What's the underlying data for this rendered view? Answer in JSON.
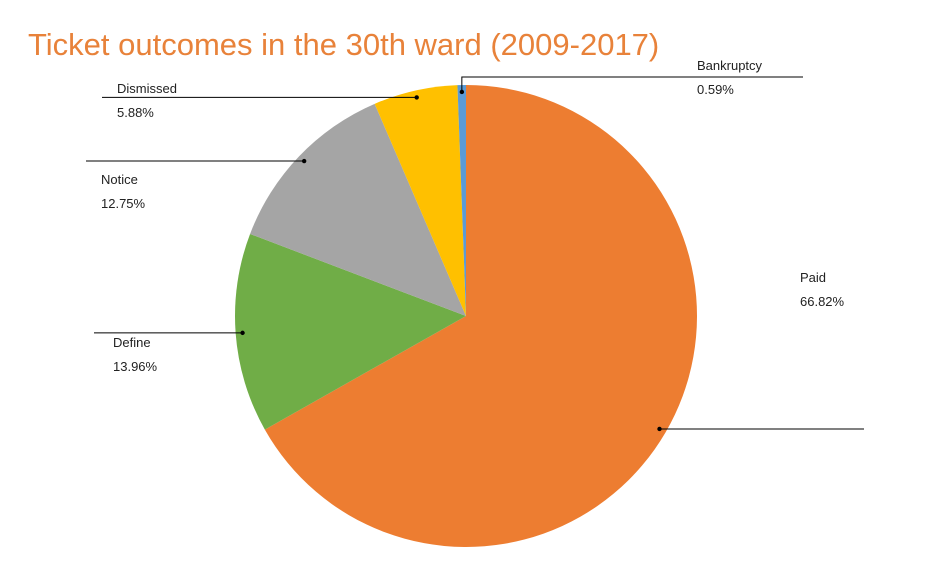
{
  "chart_data": {
    "type": "pie",
    "title": "Ticket outcomes in the 30th ward (2009-2017)",
    "title_color": "#E8823A",
    "slices": [
      {
        "label": "Paid",
        "value": 66.82,
        "value_label": "66.82%",
        "color": "#ED7D31"
      },
      {
        "label": "Define",
        "value": 13.96,
        "value_label": "13.96%",
        "color": "#70AD47"
      },
      {
        "label": "Notice",
        "value": 12.75,
        "value_label": "12.75%",
        "color": "#A5A5A5"
      },
      {
        "label": "Dismissed",
        "value": 5.88,
        "value_label": "5.88%",
        "color": "#FFC000"
      },
      {
        "label": "Bankruptcy",
        "value": 0.59,
        "value_label": "0.59%",
        "color": "#5B9BD5"
      }
    ],
    "direction": "clockwise",
    "start_angle": "12 o'clock",
    "legend": "none"
  }
}
